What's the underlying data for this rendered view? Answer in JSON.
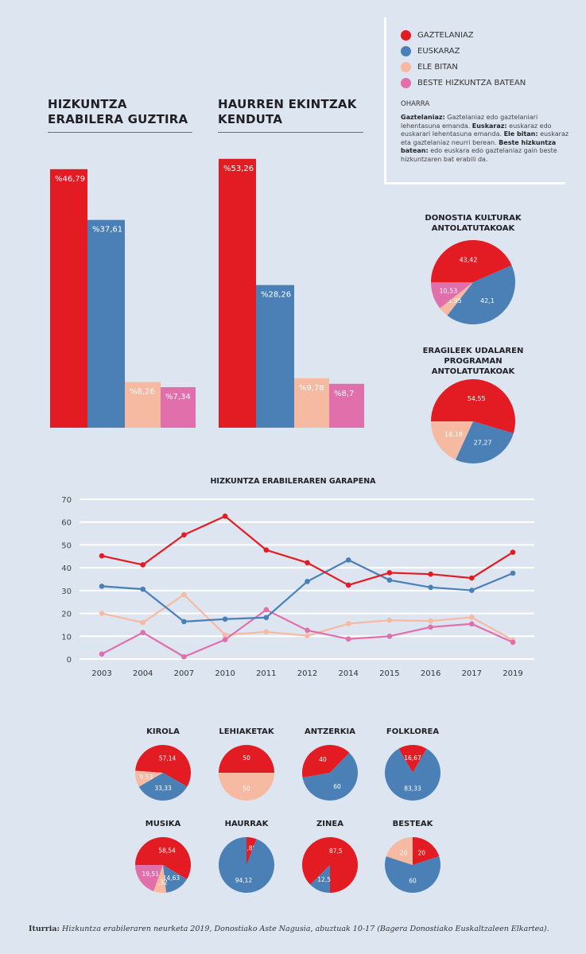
{
  "colors": {
    "gaztelaniaz": "#e31b23",
    "euskaraz": "#4a80b6",
    "ele_bitan": "#f6b9a2",
    "beste": "#e06fab"
  },
  "legend": [
    {
      "key": "gaztelaniaz",
      "label": "GAZTELANIAZ"
    },
    {
      "key": "euskaraz",
      "label": "EUSKARAZ"
    },
    {
      "key": "ele_bitan",
      "label": "ELE BITAN"
    },
    {
      "key": "beste",
      "label": "BESTE HIZKUNTZA BATEAN"
    }
  ],
  "note": {
    "title": "OHARRA",
    "parts": [
      {
        "bold": "Gaztelaniaz:",
        "text": " Gaztelaniaz edo gaztelaniari lehentasuna emanda. "
      },
      {
        "bold": "Euskaraz:",
        "text": " euskaraz edo euskarari lehentasuna emanda. "
      },
      {
        "bold": "Ele bitan:",
        "text": " euskaraz eta gaztelaniaz neurri berean. "
      },
      {
        "bold": "Beste hizkuntza batean:",
        "text": " edo euskara edo gaztelaniaz gain beste hizkuntzaren bat erabili da."
      }
    ]
  },
  "footer": {
    "bold": "Iturria:",
    "text": " Hizkuntza erabileraren neurketa 2019, Donostiako Aste Nagusia, abuztuak 10-17 (Bagera Donostiako Euskaltzaleen Elkartea)."
  },
  "chart_data": [
    {
      "type": "bar",
      "title": "HIZKUNTZA ERABILERA GUZTIRA",
      "categories": [
        "gaztelaniaz",
        "euskaraz",
        "ele_bitan",
        "beste"
      ],
      "values": [
        46.79,
        37.61,
        8.26,
        7.34
      ],
      "labels": [
        "%46,79",
        "%37,61",
        "%8,26",
        "%7,34"
      ]
    },
    {
      "type": "bar",
      "title": "HAURREN EKINTZAK KENDUTA",
      "categories": [
        "gaztelaniaz",
        "euskaraz",
        "ele_bitan",
        "beste"
      ],
      "values": [
        53.26,
        28.26,
        9.78,
        8.7
      ],
      "labels": [
        "%53,26",
        "%28,26",
        "%9,78",
        "%8,7"
      ]
    },
    {
      "type": "pie",
      "title": "DONOSTIA KULTURAK ANTOLATUTAKOAK",
      "slices": [
        {
          "category": "gaztelaniaz",
          "value": 43.42,
          "label": "43,42"
        },
        {
          "category": "euskaraz",
          "value": 42.1,
          "label": "42,1"
        },
        {
          "category": "ele_bitan",
          "value": 3.95,
          "label": "3,95"
        },
        {
          "category": "beste",
          "value": 10.53,
          "label": "10,53"
        }
      ]
    },
    {
      "type": "pie",
      "title": "ERAGILEEK UDALAREN PROGRAMAN ANTOLATUTAKOAK",
      "slices": [
        {
          "category": "gaztelaniaz",
          "value": 54.55,
          "label": "54,55"
        },
        {
          "category": "euskaraz",
          "value": 27.27,
          "label": "27,27"
        },
        {
          "category": "ele_bitan",
          "value": 18.18,
          "label": "18,18"
        }
      ]
    },
    {
      "type": "line",
      "title": "HIZKUNTZA ERABILERAREN GARAPENA",
      "categories": [
        "2003",
        "2004",
        "2007",
        "2010",
        "2011",
        "2012",
        "2014",
        "2015",
        "2016",
        "2017",
        "2019"
      ],
      "ylim": [
        0,
        70
      ],
      "yticks": [
        0,
        10,
        20,
        30,
        40,
        50,
        60,
        70
      ],
      "grid": true,
      "series": [
        {
          "category": "gaztelaniaz",
          "values": [
            45.2,
            41.3,
            54.4,
            62.6,
            47.8,
            42.2,
            32.4,
            37.8,
            37.2,
            35.5,
            46.79
          ]
        },
        {
          "category": "euskaraz",
          "values": [
            31.9,
            30.6,
            16.4,
            17.5,
            18.2,
            34.0,
            43.4,
            34.6,
            31.4,
            30.1,
            37.61
          ]
        },
        {
          "category": "ele_bitan",
          "values": [
            20.0,
            16.0,
            28.2,
            10.6,
            11.9,
            10.2,
            15.5,
            17.0,
            16.7,
            18.3,
            8.26
          ]
        },
        {
          "category": "beste",
          "values": [
            2.2,
            11.6,
            1.0,
            8.5,
            21.6,
            12.6,
            8.8,
            10.0,
            14.0,
            15.4,
            7.34
          ]
        }
      ]
    },
    {
      "type": "pie",
      "title": "KIROLA",
      "slices": [
        {
          "category": "gaztelaniaz",
          "value": 57.14,
          "label": "57,14"
        },
        {
          "category": "euskaraz",
          "value": 33.33,
          "label": "33,33"
        },
        {
          "category": "ele_bitan",
          "value": 9.53,
          "label": "9,53"
        }
      ]
    },
    {
      "type": "pie",
      "title": "LEHIAKETAK",
      "slices": [
        {
          "category": "gaztelaniaz",
          "value": 50,
          "label": "50"
        },
        {
          "category": "ele_bitan",
          "value": 50,
          "label": "50"
        }
      ]
    },
    {
      "type": "pie",
      "title": "ANTZERKIA",
      "slices": [
        {
          "category": "gaztelaniaz",
          "value": 40,
          "label": "40"
        },
        {
          "category": "euskaraz",
          "value": 60,
          "label": "60"
        }
      ]
    },
    {
      "type": "pie",
      "title": "FOLKLOREA",
      "slices": [
        {
          "category": "gaztelaniaz",
          "value": 16.67,
          "label": "16,67"
        },
        {
          "category": "euskaraz",
          "value": 83.33,
          "label": "83,33"
        }
      ]
    },
    {
      "type": "pie",
      "title": "MUSIKA",
      "slices": [
        {
          "category": "gaztelaniaz",
          "value": 58.54,
          "label": "58,54"
        },
        {
          "category": "euskaraz",
          "value": 14.63,
          "label": "14,63"
        },
        {
          "category": "ele_bitan",
          "value": 7.32,
          "label": "7,32"
        },
        {
          "category": "beste",
          "value": 19.51,
          "label": "19,51"
        }
      ]
    },
    {
      "type": "pie",
      "title": "HAURRAK",
      "slices": [
        {
          "category": "gaztelaniaz",
          "value": 5.88,
          "label": "5,88"
        },
        {
          "category": "euskaraz",
          "value": 94.12,
          "label": "94,12"
        }
      ]
    },
    {
      "type": "pie",
      "title": "ZINEA",
      "slices": [
        {
          "category": "gaztelaniaz",
          "value": 87.5,
          "label": "87,5"
        },
        {
          "category": "euskaraz",
          "value": 12.5,
          "label": "12,5"
        }
      ]
    },
    {
      "type": "pie",
      "title": "BESTEAK",
      "slices": [
        {
          "category": "gaztelaniaz",
          "value": 20,
          "label": "20"
        },
        {
          "category": "euskaraz",
          "value": 60,
          "label": "60"
        },
        {
          "category": "ele_bitan",
          "value": 20,
          "label": "20"
        }
      ]
    }
  ]
}
